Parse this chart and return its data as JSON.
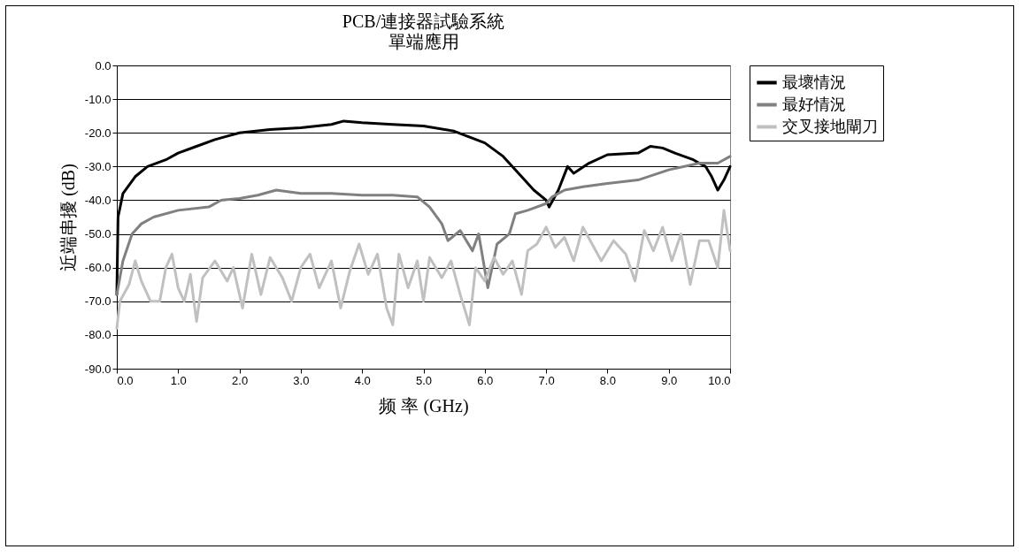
{
  "chart_data": {
    "type": "line",
    "title": "PCB/連接器試驗系統",
    "subtitle": "單端應用",
    "xlabel": "频 率 (GHz)",
    "ylabel": "近端串擾 (dB)",
    "xlim": [
      0,
      10
    ],
    "ylim": [
      -90,
      0
    ],
    "xticks": [
      {
        "value": 0,
        "label": "0.0"
      },
      {
        "value": 1,
        "label": "1.0"
      },
      {
        "value": 2,
        "label": "2.0"
      },
      {
        "value": 3,
        "label": "3.0"
      },
      {
        "value": 4,
        "label": "4.0"
      },
      {
        "value": 5,
        "label": "5.0"
      },
      {
        "value": 6,
        "label": "6.0"
      },
      {
        "value": 7,
        "label": "7.0"
      },
      {
        "value": 8,
        "label": "8.0"
      },
      {
        "value": 9,
        "label": "9.0"
      },
      {
        "value": 10,
        "label": "10.0"
      }
    ],
    "yticks": [
      {
        "value": 0,
        "label": "0.0"
      },
      {
        "value": -10,
        "label": "-10.0"
      },
      {
        "value": -20,
        "label": "-20.0"
      },
      {
        "value": -30,
        "label": "-30.0"
      },
      {
        "value": -40,
        "label": "-40.0"
      },
      {
        "value": -50,
        "label": "-50.0"
      },
      {
        "value": -60,
        "label": "-60.0"
      },
      {
        "value": -70,
        "label": "-70.0"
      },
      {
        "value": -80,
        "label": "-80.0"
      },
      {
        "value": -90,
        "label": "-90.0"
      }
    ],
    "grid": "y",
    "legend": "right",
    "line_style": "solid",
    "series": [
      {
        "name": "最壞情況",
        "color": "#000000",
        "x": [
          0,
          0.02,
          0.1,
          0.3,
          0.5,
          0.8,
          1.0,
          1.3,
          1.6,
          2.0,
          2.5,
          3.0,
          3.5,
          3.7,
          4.0,
          4.5,
          5.0,
          5.5,
          6.0,
          6.3,
          6.6,
          6.8,
          7.0,
          7.05,
          7.2,
          7.35,
          7.45,
          7.7,
          8.0,
          8.5,
          8.7,
          8.9,
          9.1,
          9.4,
          9.6,
          9.7,
          9.8,
          9.9,
          10.0
        ],
        "values": [
          -68,
          -45,
          -38,
          -33,
          -30,
          -28,
          -26,
          -24,
          -22,
          -20,
          -19,
          -18.5,
          -17.5,
          -16.5,
          -17,
          -17.5,
          -18,
          -19.5,
          -23,
          -27,
          -33,
          -37,
          -40,
          -42,
          -37,
          -30,
          -32,
          -29,
          -26.5,
          -26,
          -24,
          -24.5,
          -26,
          -28,
          -30,
          -33,
          -37,
          -34,
          -30
        ]
      },
      {
        "name": "最好情況",
        "color": "#808080",
        "x": [
          0,
          0.1,
          0.25,
          0.4,
          0.6,
          1.0,
          1.5,
          1.7,
          2.0,
          2.3,
          2.6,
          3.0,
          3.5,
          4.0,
          4.5,
          4.9,
          5.1,
          5.3,
          5.4,
          5.6,
          5.8,
          5.9,
          6.05,
          6.2,
          6.4,
          6.5,
          6.7,
          7.0,
          7.1,
          7.3,
          7.6,
          8.0,
          8.5,
          9.0,
          9.5,
          9.8,
          10.0
        ],
        "values": [
          -68,
          -58,
          -50,
          -47,
          -45,
          -43,
          -42,
          -40,
          -39.5,
          -38.5,
          -37,
          -38,
          -38,
          -38.5,
          -38.5,
          -39,
          -42,
          -47,
          -52,
          -49,
          -55,
          -50,
          -66,
          -53,
          -50,
          -44,
          -43,
          -41,
          -39,
          -37,
          -36,
          -35,
          -34,
          -31,
          -29,
          -29,
          -27
        ]
      },
      {
        "name": "交叉接地閘刀",
        "color": "#c0c0c0",
        "x": [
          0,
          0.05,
          0.2,
          0.3,
          0.4,
          0.55,
          0.7,
          0.8,
          0.9,
          1.0,
          1.1,
          1.2,
          1.3,
          1.4,
          1.6,
          1.8,
          1.9,
          2.05,
          2.2,
          2.35,
          2.5,
          2.7,
          2.85,
          3.0,
          3.15,
          3.3,
          3.5,
          3.65,
          3.8,
          3.95,
          4.1,
          4.25,
          4.4,
          4.5,
          4.6,
          4.75,
          4.9,
          5.0,
          5.1,
          5.3,
          5.45,
          5.6,
          5.75,
          5.85,
          6.0,
          6.15,
          6.3,
          6.45,
          6.6,
          6.7,
          6.85,
          7.0,
          7.15,
          7.3,
          7.45,
          7.6,
          7.75,
          7.9,
          8.1,
          8.3,
          8.45,
          8.6,
          8.75,
          8.9,
          9.05,
          9.2,
          9.35,
          9.5,
          9.65,
          9.8,
          9.9,
          10.0
        ],
        "values": [
          -78,
          -70,
          -65,
          -58,
          -64,
          -70,
          -70,
          -60,
          -56,
          -66,
          -70,
          -62,
          -76,
          -63,
          -58,
          -64,
          -60,
          -72,
          -56,
          -68,
          -57,
          -63,
          -70,
          -60,
          -56,
          -66,
          -58,
          -72,
          -61,
          -53,
          -62,
          -56,
          -72,
          -77,
          -56,
          -66,
          -58,
          -70,
          -57,
          -63,
          -58,
          -68,
          -77,
          -60,
          -64,
          -57,
          -62,
          -58,
          -68,
          -55,
          -53,
          -48,
          -54,
          -51,
          -58,
          -48,
          -53,
          -58,
          -52,
          -56,
          -64,
          -49,
          -55,
          -48,
          -58,
          -50,
          -65,
          -52,
          -52,
          -60,
          -43,
          -55
        ]
      }
    ]
  }
}
